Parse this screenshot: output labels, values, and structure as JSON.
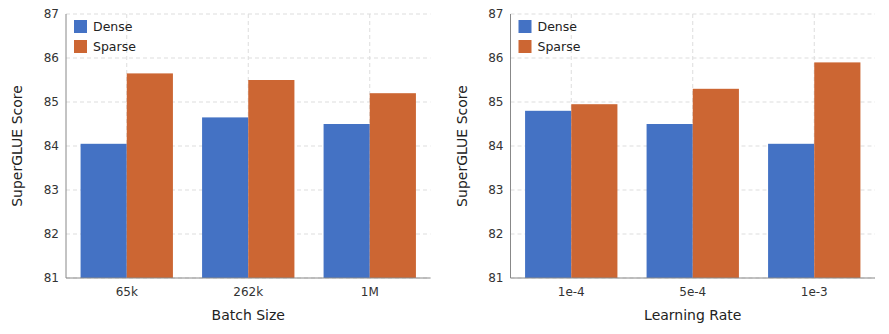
{
  "chart_data": [
    {
      "type": "bar",
      "categories": [
        "65k",
        "262k",
        "1M"
      ],
      "series": [
        {
          "name": "Dense",
          "color": "#4472C4",
          "values": [
            84.05,
            84.65,
            84.5
          ]
        },
        {
          "name": "Sparse",
          "color": "#CC6633",
          "values": [
            85.65,
            85.5,
            85.2
          ]
        }
      ],
      "xlabel": "Batch Size",
      "ylabel": "SuperGLUE Score",
      "ylim": [
        81,
        87
      ],
      "yticks": [
        81,
        82,
        83,
        84,
        85,
        86,
        87
      ],
      "grid": true,
      "legend": "upper-left"
    },
    {
      "type": "bar",
      "categories": [
        "1e-4",
        "5e-4",
        "1e-3"
      ],
      "series": [
        {
          "name": "Dense",
          "color": "#4472C4",
          "values": [
            84.8,
            84.5,
            84.05
          ]
        },
        {
          "name": "Sparse",
          "color": "#CC6633",
          "values": [
            84.95,
            85.3,
            85.9
          ]
        }
      ],
      "xlabel": "Learning Rate",
      "ylabel": "SuperGLUE Score",
      "ylim": [
        81,
        87
      ],
      "yticks": [
        81,
        82,
        83,
        84,
        85,
        86,
        87
      ],
      "grid": true,
      "legend": "upper-left"
    }
  ]
}
